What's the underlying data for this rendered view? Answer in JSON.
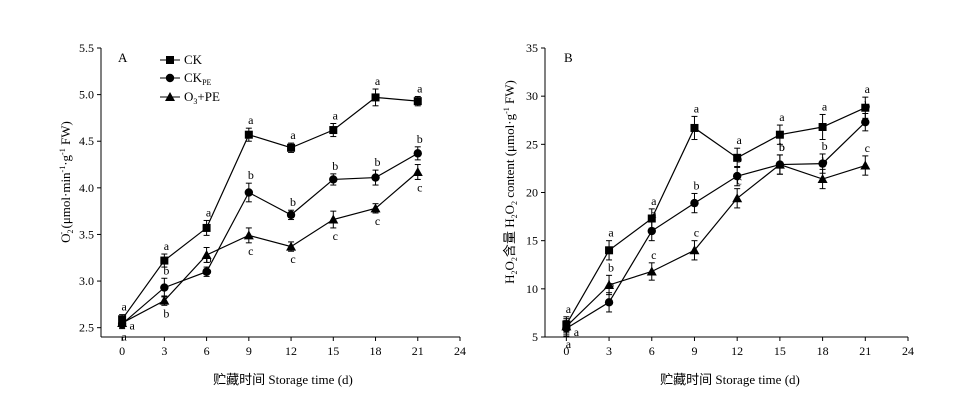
{
  "legend": {
    "ck": "CK",
    "ckpe_main": "CK",
    "ckpe_sub": "PE",
    "o3pe_a": "O",
    "o3pe_sub": "3",
    "o3pe_b": "+PE"
  },
  "chart_data": [
    {
      "type": "line",
      "panel": "A",
      "xlabel": "贮藏时间 Storage time (d)",
      "ylabel_main": "O",
      "ylabel_sub": "2",
      "ylabel_sup": "-",
      "ylabel_rest": " (μmol·min",
      "ylabel_sup2": "-1",
      "ylabel_rest2": "·g",
      "ylabel_sup3": "-1",
      "ylabel_rest3": " FW)",
      "xlim": [
        -1.5,
        24
      ],
      "ylim": [
        2.4,
        5.5
      ],
      "xticks": [
        0,
        3,
        6,
        9,
        12,
        15,
        18,
        21,
        24
      ],
      "yticks": [
        "2.5",
        "3.0",
        "3.5",
        "4.0",
        "4.5",
        "5.0",
        "5.5"
      ],
      "x": [
        0,
        3,
        6,
        9,
        12,
        15,
        18,
        21
      ],
      "series": [
        {
          "name": "CK",
          "marker": "square",
          "values": [
            2.59,
            3.22,
            3.57,
            4.57,
            4.43,
            4.62,
            4.97,
            4.93
          ],
          "errors": [
            0.05,
            0.07,
            0.08,
            0.07,
            0.05,
            0.07,
            0.09,
            0.05
          ],
          "labels": [
            "a",
            "a",
            "a",
            "a",
            "a",
            "a",
            "a",
            "a"
          ]
        },
        {
          "name": "CKPE",
          "marker": "circle",
          "values": [
            2.54,
            2.93,
            3.1,
            3.95,
            3.71,
            4.09,
            4.11,
            4.37
          ],
          "errors": [
            0.05,
            0.1,
            0.05,
            0.1,
            0.05,
            0.06,
            0.08,
            0.07
          ],
          "labels": [
            "a",
            "b",
            "b",
            "b",
            "b",
            "b",
            "b",
            "b"
          ]
        },
        {
          "name": "O3+PE",
          "marker": "triangle",
          "values": [
            2.55,
            2.79,
            3.28,
            3.49,
            3.37,
            3.66,
            3.78,
            4.17
          ],
          "errors": [
            0.05,
            0.05,
            0.08,
            0.08,
            0.05,
            0.09,
            0.05,
            0.08
          ],
          "labels": [
            "a",
            "b",
            "b",
            "c",
            "c",
            "c",
            "c",
            "c"
          ]
        }
      ]
    },
    {
      "type": "line",
      "panel": "B",
      "xlabel": "贮藏时间 Storage time (d)",
      "ylabel": "H2O2含量 H2O2 content (μmol·g-1 FW)",
      "ylabel_cn": "含量 H",
      "ylabel_rest": " content (μmol·g",
      "ylabel_sup": "-1",
      "ylabel_end": " FW)",
      "xlim": [
        -1.5,
        24
      ],
      "ylim": [
        5,
        35
      ],
      "xticks": [
        0,
        3,
        6,
        9,
        12,
        15,
        18,
        21,
        24
      ],
      "yticks": [
        "5",
        "10",
        "15",
        "20",
        "25",
        "30",
        "35"
      ],
      "x": [
        0,
        3,
        6,
        9,
        12,
        15,
        18,
        21
      ],
      "series": [
        {
          "name": "CK",
          "marker": "square",
          "values": [
            6.3,
            14.0,
            17.3,
            26.7,
            23.6,
            26.0,
            26.8,
            28.8
          ],
          "errors": [
            0.8,
            1.0,
            1.0,
            1.2,
            1.0,
            1.0,
            1.3,
            1.1
          ],
          "labels": [
            "a",
            "a",
            "a",
            "a",
            "a",
            "a",
            "a",
            "a"
          ]
        },
        {
          "name": "CKPE",
          "marker": "circle",
          "values": [
            5.9,
            8.6,
            16.0,
            18.9,
            21.7,
            22.9,
            23.0,
            27.3
          ],
          "errors": [
            0.8,
            1.0,
            1.0,
            1.0,
            1.0,
            1.0,
            1.0,
            0.9
          ],
          "labels": [
            "a",
            "b",
            "a",
            "b",
            "b",
            "b",
            "b",
            "b"
          ]
        },
        {
          "name": "O3+PE",
          "marker": "triangle",
          "values": [
            6.1,
            10.4,
            11.8,
            14.0,
            19.4,
            22.9,
            21.4,
            22.8
          ],
          "errors": [
            0.8,
            1.0,
            0.9,
            1.0,
            1.0,
            1.0,
            1.0,
            1.0
          ],
          "labels": [
            "a",
            "b",
            "c",
            "c",
            "c",
            "b",
            "b",
            "c"
          ]
        }
      ]
    }
  ]
}
